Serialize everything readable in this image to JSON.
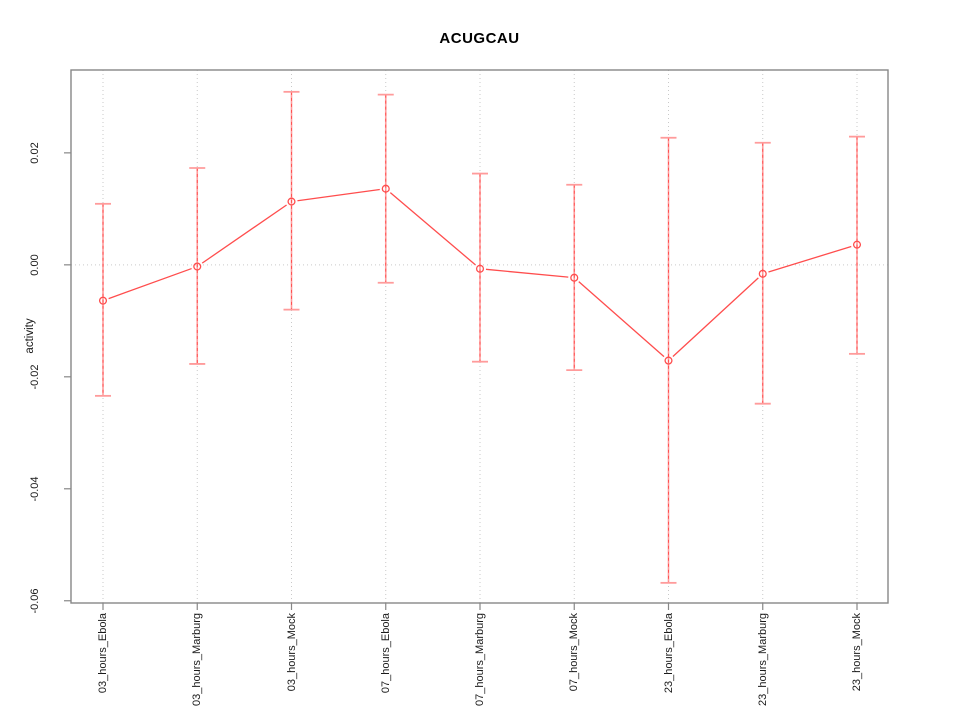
{
  "chart_data": {
    "type": "line",
    "title": "ACUGCAU",
    "xlabel": "",
    "ylabel": "activity",
    "categories": [
      "03_hours_Ebola",
      "03_hours_Marburg",
      "03_hours_Mock",
      "07_hours_Ebola",
      "07_hours_Marburg",
      "07_hours_Mock",
      "23_hours_Ebola",
      "23_hours_Marburg",
      "23_hours_Mock"
    ],
    "values": [
      -0.0064,
      -0.0003,
      0.0113,
      0.0136,
      -0.0007,
      -0.0023,
      -0.0171,
      -0.0016,
      0.0036
    ],
    "error_low": [
      -0.0234,
      -0.0177,
      -0.008,
      -0.0032,
      -0.0173,
      -0.0188,
      -0.0568,
      -0.0248,
      -0.0159
    ],
    "error_high": [
      0.0109,
      0.0173,
      0.0309,
      0.0304,
      0.0163,
      0.0143,
      0.0227,
      0.0218,
      0.0229
    ],
    "ylim": [
      -0.0604,
      0.0348
    ],
    "yticks": [
      0.02,
      0,
      -0.02,
      -0.04,
      -0.06
    ],
    "ytick_labels": [
      "0.02",
      "0.00",
      "-0.02",
      "-0.04",
      "-0.06"
    ],
    "grid": {
      "vertical": "dotted line at every category",
      "horizontal": "dotted line at 0.00",
      "style": "dotted"
    },
    "legend_position": "none",
    "marker": "open-circle",
    "line_style": "segments-with-gaps-at-markers",
    "colors": {
      "series": "#ff4d4d",
      "error_bar": "#ff9b9b",
      "error_bar_dash": "#ff5252",
      "grid": "#c9c9c9",
      "axis": "#878787",
      "text": "#1a1a1a",
      "background": "#ffffff"
    }
  }
}
